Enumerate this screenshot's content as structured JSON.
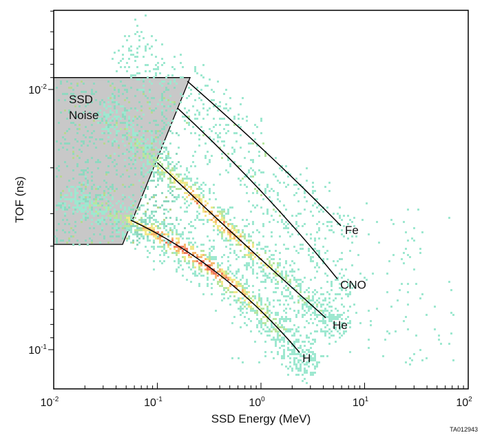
{
  "chart_data": {
    "type": "scatter",
    "subtype": "2D density histogram with overlaid track curves",
    "xlabel": "SSD Energy (MeV)",
    "ylabel": "TOF (ns)",
    "xscale": "log",
    "yscale": "log",
    "y_inverted": true,
    "xlim": [
      0.01,
      100
    ],
    "ylim": [
      0.005,
      0.14
    ],
    "x_ticks": [
      {
        "value": 0.01,
        "base": "10",
        "exp": "-2"
      },
      {
        "value": 0.1,
        "base": "10",
        "exp": "-1"
      },
      {
        "value": 1,
        "base": "10",
        "exp": "0"
      },
      {
        "value": 10,
        "base": "10",
        "exp": "1"
      },
      {
        "value": 100,
        "base": "10",
        "exp": "2"
      }
    ],
    "y_ticks": [
      {
        "value": 0.01,
        "base": "10",
        "exp": "-2"
      },
      {
        "value": 0.1,
        "base": "10",
        "exp": "-1"
      }
    ],
    "grid": false,
    "colormap": [
      "#9ee8d0",
      "#b8e6a0",
      "#f2e88a",
      "#f7b870",
      "#ef7a60"
    ],
    "curves": [
      {
        "name": "Fe",
        "points": [
          [
            0.195,
            0.0093
          ],
          [
            1.18,
            0.0178
          ],
          [
            5.9,
            0.0334
          ]
        ]
      },
      {
        "name": "CNO",
        "points": [
          [
            0.157,
            0.0118
          ],
          [
            1.03,
            0.0249
          ],
          [
            5.47,
            0.0535
          ]
        ]
      },
      {
        "name": "He",
        "points": [
          [
            0.1,
            0.0191
          ],
          [
            0.64,
            0.0382
          ],
          [
            4.22,
            0.0755
          ]
        ]
      },
      {
        "name": "H",
        "points": [
          [
            0.0555,
            0.0318
          ],
          [
            0.405,
            0.0518
          ],
          [
            2.36,
            0.1026
          ]
        ]
      }
    ],
    "regions": [
      {
        "name": "SSD Noise",
        "label_lines": [
          "SSD",
          "Noise"
        ],
        "color": "#c8c8c8",
        "polygon": [
          [
            0.01,
            0.009
          ],
          [
            0.207,
            0.009
          ],
          [
            0.0462,
            0.0394
          ],
          [
            0.01,
            0.0394
          ]
        ]
      }
    ]
  },
  "figure_id": "TA012943"
}
